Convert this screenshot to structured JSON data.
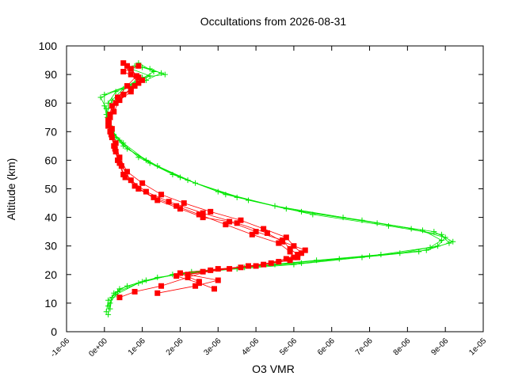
{
  "chart_data": {
    "type": "scatter",
    "title": "Occultations from 2026-08-31",
    "xlabel": "O3 VMR",
    "ylabel": "Altitude (km)",
    "xlim": [
      -1e-06,
      1e-05
    ],
    "ylim": [
      0,
      100
    ],
    "x_ticks": [
      -1e-06,
      0,
      1e-06,
      2e-06,
      3e-06,
      4e-06,
      5e-06,
      6e-06,
      7e-06,
      8e-06,
      9e-06,
      1e-05
    ],
    "x_tick_labels": [
      "-1e-06",
      "0e+00",
      "1e-06",
      "2e-06",
      "3e-06",
      "4e-06",
      "5e-06",
      "6e-06",
      "7e-06",
      "8e-06",
      "9e-06",
      "1e-05"
    ],
    "y_ticks": [
      0,
      10,
      20,
      30,
      40,
      50,
      60,
      70,
      80,
      90,
      100
    ],
    "y_tick_labels": [
      "0",
      "10",
      "20",
      "30",
      "40",
      "50",
      "60",
      "70",
      "80",
      "90",
      "100"
    ],
    "grid": false,
    "legend": "none",
    "series": [
      {
        "color": "#00e600",
        "marker": "plus",
        "profiles": [
          [
            [
              1e-07,
              6
            ],
            [
              1.5e-07,
              10
            ],
            [
              3e-07,
              13
            ],
            [
              9e-07,
              17
            ],
            [
              1.8e-06,
              20
            ],
            [
              3.5e-06,
              22
            ],
            [
              5e-06,
              23.5
            ],
            [
              6.8e-06,
              26
            ],
            [
              8.3e-06,
              28
            ],
            [
              9.1e-06,
              31
            ],
            [
              8.9e-06,
              34
            ],
            [
              7.5e-06,
              37
            ],
            [
              5.5e-06,
              41
            ],
            [
              3.8e-06,
              46
            ],
            [
              2.4e-06,
              52
            ],
            [
              1.4e-06,
              58
            ],
            [
              6e-07,
              64
            ],
            [
              3e-07,
              68
            ],
            [
              1.5e-07,
              72
            ],
            [
              5e-08,
              78
            ],
            [
              -1e-07,
              82
            ],
            [
              6e-07,
              86
            ],
            [
              1e-06,
              89
            ],
            [
              1.6e-06,
              90
            ],
            [
              1.2e-06,
              92
            ],
            [
              8e-07,
              93
            ]
          ],
          [
            [
              5e-08,
              7
            ],
            [
              1e-07,
              11
            ],
            [
              3.5e-07,
              14
            ],
            [
              1e-06,
              17.5
            ],
            [
              2e-06,
              20.5
            ],
            [
              3.7e-06,
              22.5
            ],
            [
              5.2e-06,
              24
            ],
            [
              7e-06,
              26.5
            ],
            [
              8.5e-06,
              28.5
            ],
            [
              9.2e-06,
              31.5
            ],
            [
              8.7e-06,
              35
            ],
            [
              7.2e-06,
              38
            ],
            [
              5.2e-06,
              42
            ],
            [
              3.5e-06,
              47
            ],
            [
              2.2e-06,
              53
            ],
            [
              1.2e-06,
              59
            ],
            [
              5e-07,
              65
            ],
            [
              2.5e-07,
              69
            ],
            [
              1e-07,
              73
            ],
            [
              0.0,
              79
            ],
            [
              0.0,
              83
            ],
            [
              8e-07,
              87
            ],
            [
              1.3e-06,
              91
            ],
            [
              9e-07,
              94
            ]
          ],
          [
            [
              1.5e-07,
              8
            ],
            [
              2e-07,
              12
            ],
            [
              4e-07,
              15
            ],
            [
              1.1e-06,
              18
            ],
            [
              2.3e-06,
              21
            ],
            [
              4e-06,
              23
            ],
            [
              5.6e-06,
              25
            ],
            [
              7.3e-06,
              27
            ],
            [
              8.6e-06,
              29.5
            ],
            [
              8.9e-06,
              32
            ],
            [
              8.4e-06,
              35.5
            ],
            [
              6.8e-06,
              39
            ],
            [
              4.8e-06,
              43
            ],
            [
              3.2e-06,
              48
            ],
            [
              2e-06,
              54
            ],
            [
              1.1e-06,
              60
            ],
            [
              5e-07,
              66
            ],
            [
              2e-07,
              70
            ],
            [
              8e-08,
              75
            ],
            [
              1e-07,
              80
            ],
            [
              3e-07,
              84
            ],
            [
              1.1e-06,
              88
            ],
            [
              1.5e-06,
              90.5
            ],
            [
              1e-06,
              92.5
            ]
          ],
          [
            [
              1e-07,
              9
            ],
            [
              2.5e-07,
              13.5
            ],
            [
              6e-07,
              16
            ],
            [
              1.4e-06,
              19
            ],
            [
              2.8e-06,
              21.5
            ],
            [
              4.5e-06,
              23.5
            ],
            [
              6.2e-06,
              25.5
            ],
            [
              7.8e-06,
              27.5
            ],
            [
              8.8e-06,
              30
            ],
            [
              9e-06,
              33
            ],
            [
              8.1e-06,
              36
            ],
            [
              6.3e-06,
              40
            ],
            [
              4.5e-06,
              44
            ],
            [
              3e-06,
              49
            ],
            [
              1.8e-06,
              55
            ],
            [
              9e-07,
              61
            ],
            [
              4e-07,
              67
            ],
            [
              1.8e-07,
              71
            ],
            [
              5e-08,
              76
            ],
            [
              2e-07,
              81
            ],
            [
              5e-07,
              85
            ],
            [
              1.2e-06,
              89.5
            ],
            [
              7e-07,
              92
            ]
          ]
        ]
      },
      {
        "color": "#ff0000",
        "marker": "filled-square",
        "profiles": [
          [
            [
              4e-07,
              12
            ],
            [
              8e-07,
              14
            ],
            [
              1.5e-06,
              16
            ],
            [
              2.2e-06,
              19
            ],
            [
              2.8e-06,
              21.5
            ],
            [
              3.8e-06,
              23
            ],
            [
              4.6e-06,
              24.5
            ],
            [
              5e-06,
              26
            ],
            [
              4.9e-06,
              28
            ],
            [
              4.6e-06,
              31
            ],
            [
              3.9e-06,
              34
            ],
            [
              3.2e-06,
              37.5
            ],
            [
              2.5e-06,
              41
            ],
            [
              1.9e-06,
              44
            ],
            [
              1.3e-06,
              47
            ],
            [
              8e-07,
              51
            ],
            [
              5e-07,
              55
            ],
            [
              3.5e-07,
              60
            ],
            [
              2.5e-07,
              65
            ],
            [
              1.5e-07,
              70
            ],
            [
              1e-07,
              74
            ],
            [
              2e-07,
              79
            ],
            [
              5e-07,
              83
            ],
            [
              8e-07,
              86
            ],
            [
              9e-07,
              89
            ],
            [
              6e-07,
              93
            ]
          ],
          [
            [
              1.4e-06,
              13.5
            ],
            [
              2.4e-06,
              16
            ],
            [
              3e-06,
              18
            ],
            [
              2.2e-06,
              20
            ],
            [
              3.3e-06,
              22
            ],
            [
              4.2e-06,
              23.5
            ],
            [
              4.9e-06,
              25
            ],
            [
              5.2e-06,
              27.5
            ],
            [
              5e-06,
              30
            ],
            [
              4.8e-06,
              33
            ],
            [
              4.2e-06,
              36
            ],
            [
              3.6e-06,
              39
            ],
            [
              2.8e-06,
              42
            ],
            [
              2.1e-06,
              45
            ],
            [
              1.5e-06,
              48
            ],
            [
              1e-06,
              52
            ],
            [
              6e-07,
              56
            ],
            [
              4e-07,
              61
            ],
            [
              3e-07,
              66
            ],
            [
              2e-07,
              71
            ],
            [
              1.5e-07,
              75
            ],
            [
              3e-07,
              80
            ],
            [
              7e-07,
              84
            ],
            [
              9e-07,
              87
            ],
            [
              7e-07,
              90
            ],
            [
              5e-07,
              94
            ]
          ],
          [
            [
              2.9e-06,
              15
            ],
            [
              2.5e-06,
              17
            ],
            [
              1.9e-06,
              19.5
            ],
            [
              2.6e-06,
              21
            ],
            [
              3.6e-06,
              22.5
            ],
            [
              4.4e-06,
              24
            ],
            [
              5.1e-06,
              26
            ],
            [
              5.3e-06,
              28.5
            ],
            [
              4.7e-06,
              31.5
            ],
            [
              4.3e-06,
              34.5
            ],
            [
              3.5e-06,
              38
            ],
            [
              2.6e-06,
              41.5
            ],
            [
              1.7e-06,
              45.5
            ],
            [
              1.1e-06,
              49
            ],
            [
              7e-07,
              53
            ],
            [
              4.5e-07,
              58
            ],
            [
              3e-07,
              63
            ],
            [
              2e-07,
              68
            ],
            [
              1.2e-07,
              73
            ],
            [
              2.5e-07,
              77
            ],
            [
              4e-07,
              81
            ],
            [
              7e-07,
              85
            ],
            [
              1e-06,
              88
            ],
            [
              5e-07,
              91
            ],
            [
              9e-07,
              93
            ]
          ],
          [
            [
              2.5e-06,
              17.5
            ],
            [
              2e-06,
              20.5
            ],
            [
              3e-06,
              22
            ],
            [
              4e-06,
              23
            ],
            [
              4.8e-06,
              25.5
            ],
            [
              5.1e-06,
              27
            ],
            [
              4.9e-06,
              29
            ],
            [
              4.7e-06,
              32
            ],
            [
              4e-06,
              35
            ],
            [
              3.3e-06,
              38.5
            ],
            [
              2.6e-06,
              40
            ],
            [
              2e-06,
              43
            ],
            [
              1.4e-06,
              46
            ],
            [
              9e-07,
              50
            ],
            [
              5.5e-07,
              54
            ],
            [
              4e-07,
              59
            ],
            [
              2.8e-07,
              64
            ],
            [
              1.8e-07,
              69
            ],
            [
              1e-07,
              72
            ],
            [
              1.5e-07,
              76
            ],
            [
              3.5e-07,
              82
            ],
            [
              6e-07,
              86
            ],
            [
              8.5e-07,
              89.5
            ],
            [
              7e-07,
              92
            ]
          ]
        ]
      }
    ]
  }
}
